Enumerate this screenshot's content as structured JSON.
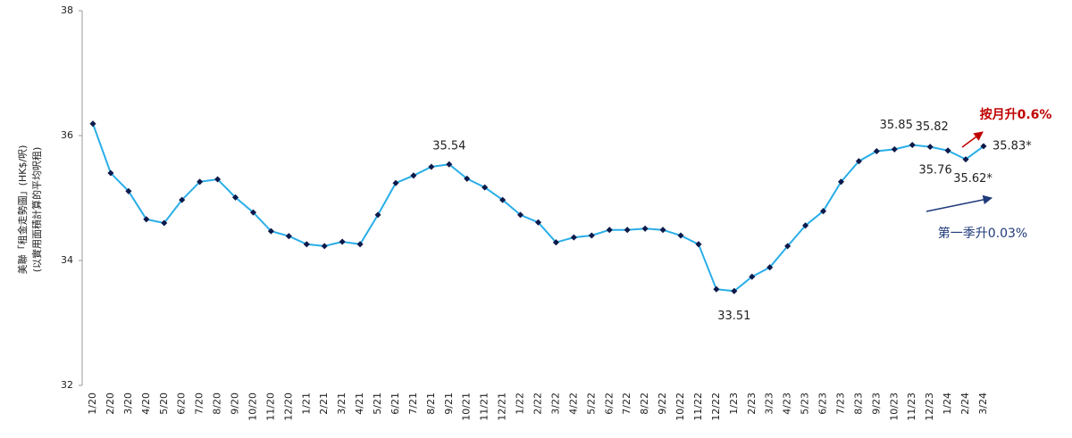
{
  "chart_data": {
    "type": "line",
    "y_label_lines": [
      "美聯「租金走勢圖」(HK$/呎)",
      "(以實用面積計算的平均呎租)"
    ],
    "categories": [
      "1/20",
      "2/20",
      "3/20",
      "4/20",
      "5/20",
      "6/20",
      "7/20",
      "8/20",
      "9/20",
      "10/20",
      "11/20",
      "12/20",
      "1/21",
      "2/21",
      "3/21",
      "4/21",
      "5/21",
      "6/21",
      "7/21",
      "8/21",
      "9/21",
      "10/21",
      "11/21",
      "12/21",
      "1/22",
      "2/22",
      "3/22",
      "4/22",
      "5/22",
      "6/22",
      "7/22",
      "8/22",
      "9/22",
      "10/22",
      "11/22",
      "12/22",
      "1/23",
      "2/23",
      "3/23",
      "4/23",
      "5/23",
      "6/23",
      "7/23",
      "8/23",
      "9/23",
      "10/23",
      "11/23",
      "12/23",
      "1/24",
      "2/24",
      "3/24"
    ],
    "series": [
      {
        "color": "#29aee8",
        "values": [
          36.19,
          35.4,
          35.11,
          34.66,
          34.6,
          34.97,
          35.26,
          35.3,
          35.01,
          34.77,
          34.47,
          34.39,
          34.26,
          34.23,
          34.3,
          34.26,
          34.73,
          35.24,
          35.36,
          35.5,
          35.54,
          35.31,
          35.17,
          34.97,
          34.73,
          34.61,
          34.29,
          34.37,
          34.4,
          34.49,
          34.49,
          34.51,
          34.49,
          34.4,
          34.26,
          33.54,
          33.51,
          33.74,
          33.89,
          34.23,
          34.56,
          34.79,
          35.26,
          35.59,
          35.75,
          35.78,
          35.85,
          35.82,
          35.76,
          35.62,
          35.83
        ],
        "value_labels": [
          null,
          null,
          null,
          null,
          null,
          null,
          null,
          null,
          null,
          null,
          null,
          null,
          null,
          null,
          null,
          null,
          null,
          null,
          null,
          null,
          "35.54",
          null,
          null,
          null,
          null,
          null,
          null,
          null,
          null,
          null,
          null,
          null,
          null,
          null,
          null,
          null,
          "33.51",
          null,
          null,
          null,
          null,
          null,
          null,
          null,
          null,
          null,
          "35.85",
          "35.82",
          "35.76",
          "35.62*",
          "35.83*"
        ]
      }
    ],
    "annotations": [
      "按月升0.6%",
      "第一季升0.03%"
    ],
    "ylim": [
      32,
      38
    ],
    "yticks": [
      32,
      34,
      36,
      38
    ]
  }
}
